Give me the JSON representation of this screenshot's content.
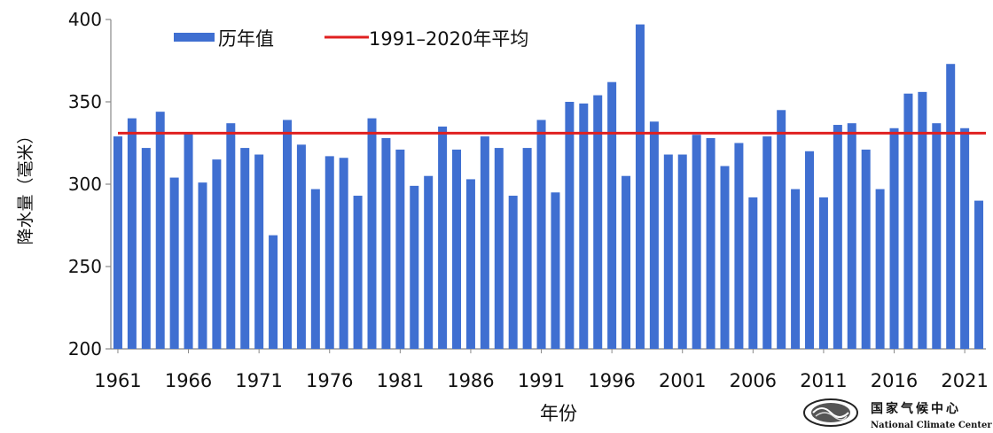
{
  "chart_data": {
    "type": "bar",
    "xlabel": "年份",
    "ylabel": "降水量（毫米）",
    "ylim": [
      200,
      400
    ],
    "yticks": [
      200,
      250,
      300,
      350,
      400
    ],
    "xtick_labels": [
      "1961",
      "1966",
      "1971",
      "1976",
      "1981",
      "1986",
      "1991",
      "1996",
      "2001",
      "2006",
      "2011",
      "2016",
      "2021"
    ],
    "categories": [
      1961,
      1962,
      1963,
      1964,
      1965,
      1966,
      1967,
      1968,
      1969,
      1970,
      1971,
      1972,
      1973,
      1974,
      1975,
      1976,
      1977,
      1978,
      1979,
      1980,
      1981,
      1982,
      1983,
      1984,
      1985,
      1986,
      1987,
      1988,
      1989,
      1990,
      1991,
      1992,
      1993,
      1994,
      1995,
      1996,
      1997,
      1998,
      1999,
      2000,
      2001,
      2002,
      2003,
      2004,
      2005,
      2006,
      2007,
      2008,
      2009,
      2010,
      2011,
      2012,
      2013,
      2014,
      2015,
      2016,
      2017,
      2018,
      2019,
      2020,
      2021,
      2022
    ],
    "series": [
      {
        "name": "历年值",
        "color": "#3f6fd1",
        "values": [
          329,
          340,
          322,
          344,
          304,
          331,
          301,
          315,
          337,
          322,
          318,
          269,
          339,
          324,
          297,
          317,
          316,
          293,
          340,
          328,
          321,
          299,
          305,
          335,
          321,
          303,
          329,
          322,
          293,
          322,
          339,
          295,
          350,
          349,
          354,
          362,
          305,
          397,
          338,
          318,
          318,
          330,
          328,
          311,
          325,
          292,
          329,
          345,
          297,
          320,
          292,
          336,
          337,
          321,
          297,
          334,
          355,
          356,
          337,
          373,
          334,
          290
        ]
      }
    ],
    "reference_line": {
      "name": "1991–2020年平均",
      "value": 331,
      "color": "#e02020"
    },
    "legend": {
      "position": "top-left"
    },
    "grid": false
  },
  "logo": {
    "name_cn": "国家气候中心",
    "name_en": "National Climate Center"
  }
}
